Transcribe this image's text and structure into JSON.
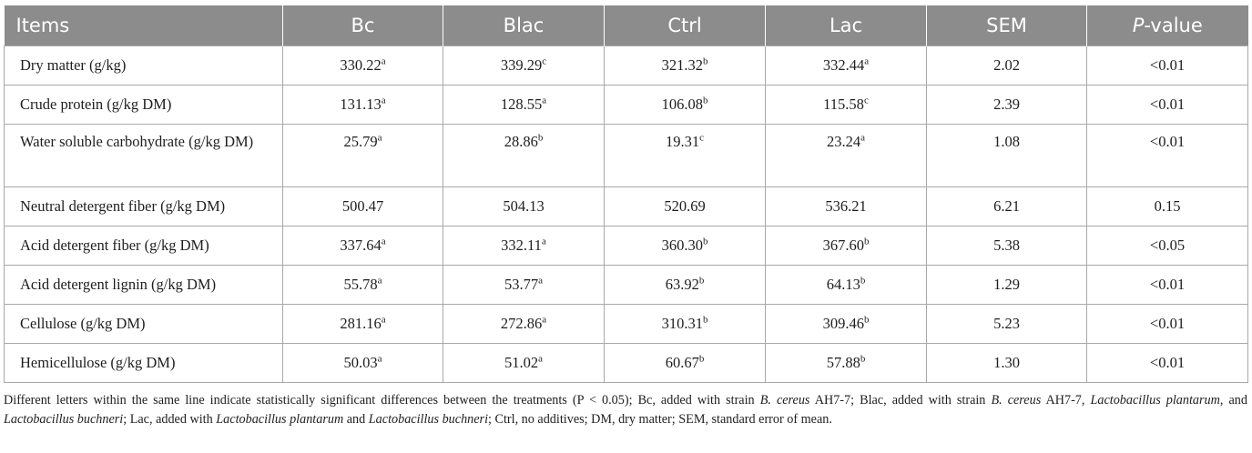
{
  "table": {
    "headers": [
      "Items",
      "Bc",
      "Blac",
      "Ctrl",
      "Lac",
      "SEM"
    ],
    "pvalue_header": {
      "italic": "P",
      "rest": "-value"
    },
    "rows": [
      {
        "item": "Dry matter (g/kg)",
        "vals": [
          {
            "v": "330.22",
            "s": "a"
          },
          {
            "v": "339.29",
            "s": "c"
          },
          {
            "v": "321.32",
            "s": "b"
          },
          {
            "v": "332.44",
            "s": "a"
          }
        ],
        "sem": "2.02",
        "p": "<0.01"
      },
      {
        "item": "Crude protein (g/kg DM)",
        "vals": [
          {
            "v": "131.13",
            "s": "a"
          },
          {
            "v": "128.55",
            "s": "a"
          },
          {
            "v": "106.08",
            "s": "b"
          },
          {
            "v": "115.58",
            "s": "c"
          }
        ],
        "sem": "2.39",
        "p": "<0.01"
      },
      {
        "item": "Water soluble carbohydrate (g/kg DM)",
        "vals": [
          {
            "v": "25.79",
            "s": "a"
          },
          {
            "v": "28.86",
            "s": "b"
          },
          {
            "v": "19.31",
            "s": "c"
          },
          {
            "v": "23.24",
            "s": "a"
          }
        ],
        "sem": "1.08",
        "p": "<0.01"
      },
      {
        "item": "Neutral detergent fiber (g/kg DM)",
        "vals": [
          {
            "v": "500.47",
            "s": ""
          },
          {
            "v": "504.13",
            "s": ""
          },
          {
            "v": "520.69",
            "s": ""
          },
          {
            "v": "536.21",
            "s": ""
          }
        ],
        "sem": "6.21",
        "p": "0.15"
      },
      {
        "item": "Acid detergent fiber (g/kg DM)",
        "vals": [
          {
            "v": "337.64",
            "s": "a"
          },
          {
            "v": "332.11",
            "s": "a"
          },
          {
            "v": "360.30",
            "s": "b"
          },
          {
            "v": "367.60",
            "s": "b"
          }
        ],
        "sem": "5.38",
        "p": "<0.05"
      },
      {
        "item": "Acid detergent lignin (g/kg DM)",
        "vals": [
          {
            "v": "55.78",
            "s": "a"
          },
          {
            "v": "53.77",
            "s": "a"
          },
          {
            "v": "63.92",
            "s": "b"
          },
          {
            "v": "64.13",
            "s": "b"
          }
        ],
        "sem": "1.29",
        "p": "<0.01"
      },
      {
        "item": "Cellulose (g/kg DM)",
        "vals": [
          {
            "v": "281.16",
            "s": "a"
          },
          {
            "v": "272.86",
            "s": "a"
          },
          {
            "v": "310.31",
            "s": "b"
          },
          {
            "v": "309.46",
            "s": "b"
          }
        ],
        "sem": "5.23",
        "p": "<0.01"
      },
      {
        "item": "Hemicellulose (g/kg DM)",
        "vals": [
          {
            "v": "50.03",
            "s": "a"
          },
          {
            "v": "51.02",
            "s": "a"
          },
          {
            "v": "60.67",
            "s": "b"
          },
          {
            "v": "57.88",
            "s": "b"
          }
        ],
        "sem": "1.30",
        "p": "<0.01"
      }
    ]
  },
  "footnote": {
    "t1": "Different letters within the same line indicate statistically significant differences between the treatments (P < 0.05); Bc, added with strain ",
    "i1": "B. cereus",
    "t2": " AH7-7; Blac, added with strain ",
    "i2": "B. cereus",
    "t3": " AH7-7, ",
    "i3": "Lactobacillus plantarum",
    "t4": ", and ",
    "i4": "Lactobacillus buchneri",
    "t5": "; Lac, added with ",
    "i5": "Lactobacillus plantarum",
    "t6": " and ",
    "i6": "Lactobacillus buchneri",
    "t7": "; Ctrl, no additives; DM, dry matter; SEM, standard error of mean."
  },
  "colors": {
    "header_bg": "#8c8c8c",
    "header_text": "#ffffff",
    "border": "#a9a9a9"
  }
}
